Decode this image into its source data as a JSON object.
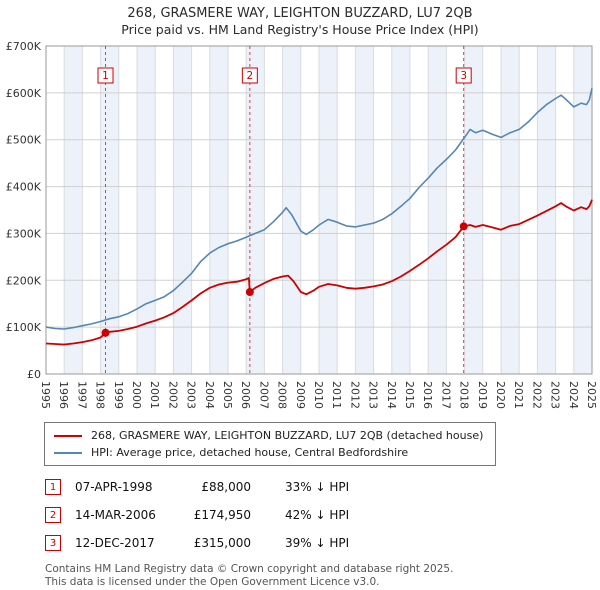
{
  "chart_data": {
    "type": "line",
    "title": "268, GRASMERE WAY, LEIGHTON BUZZARD, LU7 2QB",
    "subtitle": "Price paid vs. HM Land Registry's House Price Index (HPI)",
    "x_range": [
      1995,
      2025
    ],
    "y_range": [
      0,
      700000
    ],
    "grid": true,
    "band_color": "#edf2fa",
    "grid_color": "#cccccc",
    "border_color": "#999999",
    "marker_line_color": "#cc4444",
    "marker_color": "#cc0000",
    "y_ticks": [
      {
        "value": 0,
        "label": "£0"
      },
      {
        "value": 100000,
        "label": "£100K"
      },
      {
        "value": 200000,
        "label": "£200K"
      },
      {
        "value": 300000,
        "label": "£300K"
      },
      {
        "value": 400000,
        "label": "£400K"
      },
      {
        "value": 500000,
        "label": "£500K"
      },
      {
        "value": 600000,
        "label": "£600K"
      },
      {
        "value": 700000,
        "label": "£700K"
      }
    ],
    "x_ticks": [
      1995,
      1996,
      1997,
      1998,
      1999,
      2000,
      2001,
      2002,
      2003,
      2004,
      2005,
      2006,
      2007,
      2008,
      2009,
      2010,
      2011,
      2012,
      2013,
      2014,
      2015,
      2016,
      2017,
      2018,
      2019,
      2020,
      2021,
      2022,
      2023,
      2024,
      2025
    ],
    "series": [
      {
        "name": "268, GRASMERE WAY, LEIGHTON BUZZARD, LU7 2QB (detached house)",
        "color": "#cc0000",
        "points": [
          [
            1995.0,
            65000
          ],
          [
            1995.5,
            64000
          ],
          [
            1996.0,
            63000
          ],
          [
            1996.5,
            65000
          ],
          [
            1997.0,
            68000
          ],
          [
            1997.5,
            72000
          ],
          [
            1998.0,
            78000
          ],
          [
            1998.27,
            88000
          ],
          [
            1998.5,
            90000
          ],
          [
            1999.0,
            92000
          ],
          [
            1999.5,
            96000
          ],
          [
            2000.0,
            101000
          ],
          [
            2000.5,
            108000
          ],
          [
            2001.0,
            114000
          ],
          [
            2001.5,
            121000
          ],
          [
            2002.0,
            130000
          ],
          [
            2002.5,
            143000
          ],
          [
            2003.0,
            157000
          ],
          [
            2003.5,
            172000
          ],
          [
            2004.0,
            184000
          ],
          [
            2004.5,
            191000
          ],
          [
            2005.0,
            195000
          ],
          [
            2005.5,
            197000
          ],
          [
            2006.0,
            202000
          ],
          [
            2006.15,
            205000
          ],
          [
            2006.2,
            174950
          ],
          [
            2006.5,
            184000
          ],
          [
            2007.0,
            194000
          ],
          [
            2007.5,
            203000
          ],
          [
            2008.0,
            208000
          ],
          [
            2008.3,
            210000
          ],
          [
            2008.6,
            198000
          ],
          [
            2009.0,
            175000
          ],
          [
            2009.3,
            170000
          ],
          [
            2009.7,
            178000
          ],
          [
            2010.0,
            186000
          ],
          [
            2010.5,
            192000
          ],
          [
            2011.0,
            189000
          ],
          [
            2011.5,
            184000
          ],
          [
            2012.0,
            182000
          ],
          [
            2012.5,
            184000
          ],
          [
            2013.0,
            187000
          ],
          [
            2013.5,
            191000
          ],
          [
            2014.0,
            198000
          ],
          [
            2014.5,
            208000
          ],
          [
            2015.0,
            220000
          ],
          [
            2015.5,
            233000
          ],
          [
            2016.0,
            247000
          ],
          [
            2016.5,
            262000
          ],
          [
            2017.0,
            276000
          ],
          [
            2017.5,
            292000
          ],
          [
            2017.95,
            315000
          ],
          [
            2018.3,
            318000
          ],
          [
            2018.6,
            314000
          ],
          [
            2019.0,
            318000
          ],
          [
            2019.5,
            313000
          ],
          [
            2020.0,
            308000
          ],
          [
            2020.5,
            316000
          ],
          [
            2021.0,
            320000
          ],
          [
            2021.5,
            329000
          ],
          [
            2022.0,
            338000
          ],
          [
            2022.5,
            348000
          ],
          [
            2023.0,
            358000
          ],
          [
            2023.3,
            365000
          ],
          [
            2023.6,
            357000
          ],
          [
            2024.0,
            349000
          ],
          [
            2024.4,
            356000
          ],
          [
            2024.7,
            352000
          ],
          [
            2024.85,
            358000
          ],
          [
            2025.0,
            372000
          ]
        ]
      },
      {
        "name": "HPI: Average price, detached house, Central Bedfordshire",
        "color": "#5586b5",
        "points": [
          [
            1995.0,
            100000
          ],
          [
            1995.5,
            97000
          ],
          [
            1996.0,
            96000
          ],
          [
            1996.5,
            99000
          ],
          [
            1997.0,
            103000
          ],
          [
            1997.5,
            107000
          ],
          [
            1998.0,
            112000
          ],
          [
            1998.5,
            118000
          ],
          [
            1999.0,
            122000
          ],
          [
            1999.5,
            129000
          ],
          [
            2000.0,
            139000
          ],
          [
            2000.5,
            150000
          ],
          [
            2001.0,
            157000
          ],
          [
            2001.5,
            165000
          ],
          [
            2002.0,
            178000
          ],
          [
            2002.5,
            196000
          ],
          [
            2003.0,
            215000
          ],
          [
            2003.5,
            240000
          ],
          [
            2004.0,
            258000
          ],
          [
            2004.5,
            270000
          ],
          [
            2005.0,
            278000
          ],
          [
            2005.5,
            284000
          ],
          [
            2006.0,
            292000
          ],
          [
            2006.5,
            300000
          ],
          [
            2007.0,
            308000
          ],
          [
            2007.5,
            325000
          ],
          [
            2008.0,
            345000
          ],
          [
            2008.2,
            355000
          ],
          [
            2008.5,
            340000
          ],
          [
            2009.0,
            305000
          ],
          [
            2009.3,
            298000
          ],
          [
            2009.7,
            308000
          ],
          [
            2010.0,
            318000
          ],
          [
            2010.5,
            330000
          ],
          [
            2011.0,
            324000
          ],
          [
            2011.5,
            316000
          ],
          [
            2012.0,
            314000
          ],
          [
            2012.5,
            318000
          ],
          [
            2013.0,
            322000
          ],
          [
            2013.5,
            330000
          ],
          [
            2014.0,
            342000
          ],
          [
            2014.5,
            358000
          ],
          [
            2015.0,
            375000
          ],
          [
            2015.5,
            398000
          ],
          [
            2016.0,
            418000
          ],
          [
            2016.5,
            440000
          ],
          [
            2017.0,
            458000
          ],
          [
            2017.5,
            478000
          ],
          [
            2018.0,
            505000
          ],
          [
            2018.3,
            522000
          ],
          [
            2018.6,
            515000
          ],
          [
            2019.0,
            520000
          ],
          [
            2019.5,
            512000
          ],
          [
            2020.0,
            505000
          ],
          [
            2020.5,
            515000
          ],
          [
            2021.0,
            522000
          ],
          [
            2021.5,
            538000
          ],
          [
            2022.0,
            558000
          ],
          [
            2022.5,
            575000
          ],
          [
            2023.0,
            588000
          ],
          [
            2023.3,
            595000
          ],
          [
            2023.6,
            585000
          ],
          [
            2024.0,
            570000
          ],
          [
            2024.4,
            578000
          ],
          [
            2024.7,
            575000
          ],
          [
            2024.85,
            585000
          ],
          [
            2025.0,
            610000
          ]
        ]
      }
    ],
    "markers": [
      {
        "label": "1",
        "x": 1998.27,
        "y": 88000
      },
      {
        "label": "2",
        "x": 2006.2,
        "y": 174950
      },
      {
        "label": "3",
        "x": 2017.95,
        "y": 315000
      }
    ],
    "legend_position": "bottom"
  },
  "transactions": [
    {
      "num": "1",
      "date": "07-APR-1998",
      "price": "£88,000",
      "hpi": "33% ↓ HPI"
    },
    {
      "num": "2",
      "date": "14-MAR-2006",
      "price": "£174,950",
      "hpi": "42% ↓ HPI"
    },
    {
      "num": "3",
      "date": "12-DEC-2017",
      "price": "£315,000",
      "hpi": "39% ↓ HPI"
    }
  ],
  "footer": {
    "line1": "Contains HM Land Registry data © Crown copyright and database right 2025.",
    "line2": "This data is licensed under the Open Government Licence v3.0."
  }
}
